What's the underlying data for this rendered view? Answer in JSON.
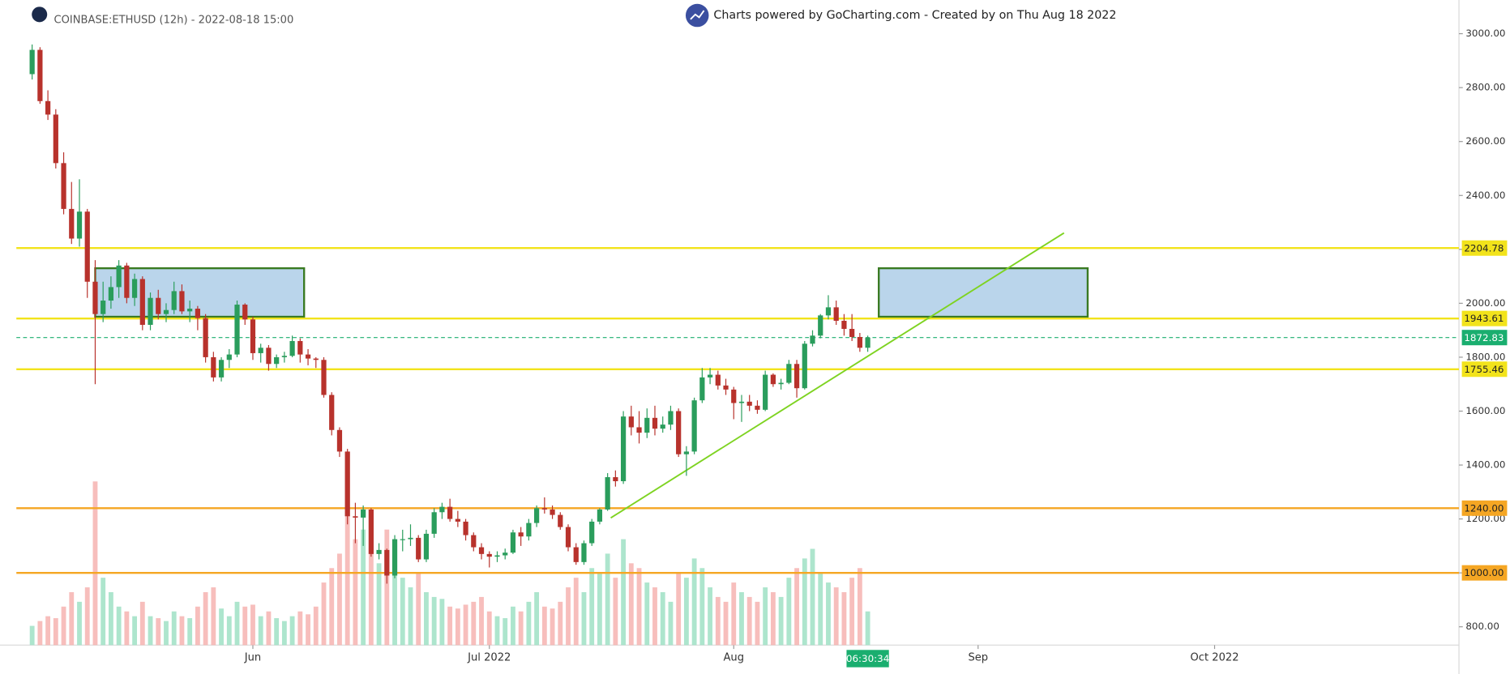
{
  "chart_data": {
    "type": "candlestick",
    "title": "COINBASE:ETHUSD (12h) - 2022-08-18 15:00",
    "subtitle": "Charts powered by GoCharting.com - Created by  on Thu Aug 18 2022",
    "countdown": "06:30:34",
    "up_color": "#2a9d5c",
    "down_color": "#b8322c",
    "volume_up_color": "#9fe0c4",
    "volume_down_color": "#f6b3b0",
    "xlim": [
      -2,
      181
    ],
    "xticks": [
      {
        "value": 28,
        "label": "Jun"
      },
      {
        "value": 58,
        "label": "Jul 2022"
      },
      {
        "value": 89,
        "label": "Aug"
      },
      {
        "value": 120,
        "label": "Sep"
      },
      {
        "value": 150,
        "label": "Oct 2022"
      }
    ],
    "ylim": [
      732,
      3125
    ],
    "yticks": [
      {
        "value": 800,
        "label": "800.00"
      },
      {
        "value": 1000,
        "label": "1000.00"
      },
      {
        "value": 1200,
        "label": "1200.00"
      },
      {
        "value": 1400,
        "label": "1400.00"
      },
      {
        "value": 1600,
        "label": "1600.00"
      },
      {
        "value": 1800,
        "label": "1800.00"
      },
      {
        "value": 2000,
        "label": "2000.00"
      },
      {
        "value": 2200,
        "label": "2200.00"
      },
      {
        "value": 2400,
        "label": "2400.00"
      },
      {
        "value": 2600,
        "label": "2600.00"
      },
      {
        "value": 2800,
        "label": "2800.00"
      },
      {
        "value": 3000,
        "label": "3000.00"
      }
    ],
    "levels": [
      {
        "value": 2204.78,
        "color": "#f2e31b"
      },
      {
        "value": 1943.61,
        "color": "#f2e31b"
      },
      {
        "value": 1755.46,
        "color": "#f2e31b"
      },
      {
        "value": 1240,
        "label": "1240.00",
        "color": "#f5a623"
      },
      {
        "value": 1000,
        "label": "1000.00",
        "color": "#f5a623"
      }
    ],
    "last_price": {
      "value": 1872.83,
      "color": "#1aae6f"
    },
    "zones": [
      {
        "x": [
          8,
          34.5
        ],
        "y": [
          1950,
          2130
        ]
      },
      {
        "x": [
          107.4,
          133.9
        ],
        "y": [
          1950,
          2130
        ]
      }
    ],
    "trendline": {
      "x": [
        73.4,
        130.9
      ],
      "y": [
        1204,
        2261
      ],
      "color": "#7ed321"
    },
    "ohlc": [
      [
        2850,
        2960,
        2830,
        2940
      ],
      [
        2940,
        2950,
        2740,
        2750
      ],
      [
        2750,
        2790,
        2680,
        2700
      ],
      [
        2700,
        2720,
        2500,
        2520
      ],
      [
        2520,
        2560,
        2330,
        2350
      ],
      [
        2350,
        2450,
        2220,
        2240
      ],
      [
        2240,
        2460,
        2210,
        2340
      ],
      [
        2340,
        2350,
        2020,
        2080
      ],
      [
        2080,
        2160,
        1700,
        1960
      ],
      [
        1960,
        2080,
        1930,
        2010
      ],
      [
        2010,
        2100,
        1980,
        2060
      ],
      [
        2060,
        2160,
        2020,
        2140
      ],
      [
        2140,
        2150,
        2000,
        2020
      ],
      [
        2020,
        2110,
        1990,
        2090
      ],
      [
        2090,
        2100,
        1900,
        1920
      ],
      [
        1920,
        2040,
        1900,
        2020
      ],
      [
        2020,
        2050,
        1940,
        1960
      ],
      [
        1960,
        2000,
        1930,
        1975
      ],
      [
        1975,
        2080,
        1960,
        2045
      ],
      [
        2045,
        2070,
        1960,
        1970
      ],
      [
        1970,
        2010,
        1930,
        1980
      ],
      [
        1980,
        1990,
        1900,
        1945
      ],
      [
        1945,
        1960,
        1780,
        1800
      ],
      [
        1800,
        1820,
        1710,
        1725
      ],
      [
        1725,
        1800,
        1710,
        1790
      ],
      [
        1790,
        1830,
        1760,
        1810
      ],
      [
        1810,
        2010,
        1800,
        1995
      ],
      [
        1995,
        2000,
        1920,
        1940
      ],
      [
        1940,
        1950,
        1790,
        1815
      ],
      [
        1815,
        1850,
        1780,
        1835
      ],
      [
        1835,
        1845,
        1750,
        1775
      ],
      [
        1775,
        1810,
        1760,
        1800
      ],
      [
        1800,
        1820,
        1780,
        1805
      ],
      [
        1805,
        1880,
        1800,
        1860
      ],
      [
        1860,
        1870,
        1780,
        1810
      ],
      [
        1810,
        1830,
        1770,
        1795
      ],
      [
        1795,
        1800,
        1760,
        1790
      ],
      [
        1790,
        1800,
        1650,
        1660
      ],
      [
        1660,
        1670,
        1510,
        1530
      ],
      [
        1530,
        1540,
        1430,
        1450
      ],
      [
        1450,
        1460,
        1180,
        1210
      ],
      [
        1210,
        1260,
        1110,
        1205
      ],
      [
        1205,
        1250,
        1100,
        1235
      ],
      [
        1235,
        1240,
        1060,
        1070
      ],
      [
        1070,
        1110,
        1050,
        1085
      ],
      [
        1085,
        1090,
        960,
        990
      ],
      [
        990,
        1140,
        980,
        1125
      ],
      [
        1125,
        1160,
        1080,
        1125
      ],
      [
        1125,
        1180,
        1100,
        1130
      ],
      [
        1130,
        1140,
        1040,
        1050
      ],
      [
        1050,
        1160,
        1040,
        1145
      ],
      [
        1145,
        1240,
        1130,
        1225
      ],
      [
        1225,
        1260,
        1200,
        1245
      ],
      [
        1245,
        1275,
        1190,
        1200
      ],
      [
        1200,
        1230,
        1170,
        1190
      ],
      [
        1190,
        1200,
        1120,
        1140
      ],
      [
        1140,
        1150,
        1080,
        1095
      ],
      [
        1095,
        1110,
        1050,
        1070
      ],
      [
        1070,
        1080,
        1020,
        1060
      ],
      [
        1060,
        1080,
        1040,
        1065
      ],
      [
        1065,
        1090,
        1050,
        1075
      ],
      [
        1075,
        1160,
        1070,
        1150
      ],
      [
        1150,
        1170,
        1100,
        1135
      ],
      [
        1135,
        1200,
        1120,
        1185
      ],
      [
        1185,
        1250,
        1170,
        1240
      ],
      [
        1240,
        1280,
        1220,
        1235
      ],
      [
        1235,
        1250,
        1200,
        1215
      ],
      [
        1215,
        1225,
        1160,
        1170
      ],
      [
        1170,
        1180,
        1080,
        1095
      ],
      [
        1095,
        1110,
        1030,
        1040
      ],
      [
        1040,
        1120,
        1030,
        1110
      ],
      [
        1110,
        1200,
        1100,
        1190
      ],
      [
        1190,
        1240,
        1180,
        1235
      ],
      [
        1235,
        1370,
        1230,
        1355
      ],
      [
        1355,
        1380,
        1320,
        1340
      ],
      [
        1340,
        1600,
        1330,
        1580
      ],
      [
        1580,
        1620,
        1510,
        1540
      ],
      [
        1540,
        1600,
        1480,
        1520
      ],
      [
        1520,
        1610,
        1500,
        1575
      ],
      [
        1575,
        1620,
        1510,
        1535
      ],
      [
        1535,
        1580,
        1520,
        1550
      ],
      [
        1550,
        1620,
        1530,
        1600
      ],
      [
        1600,
        1610,
        1430,
        1440
      ],
      [
        1440,
        1470,
        1360,
        1450
      ],
      [
        1450,
        1650,
        1440,
        1640
      ],
      [
        1640,
        1760,
        1630,
        1725
      ],
      [
        1725,
        1760,
        1700,
        1735
      ],
      [
        1735,
        1750,
        1680,
        1695
      ],
      [
        1695,
        1720,
        1660,
        1680
      ],
      [
        1680,
        1690,
        1570,
        1630
      ],
      [
        1630,
        1660,
        1560,
        1635
      ],
      [
        1635,
        1660,
        1600,
        1620
      ],
      [
        1620,
        1640,
        1590,
        1605
      ],
      [
        1605,
        1750,
        1600,
        1735
      ],
      [
        1735,
        1740,
        1690,
        1700
      ],
      [
        1700,
        1720,
        1680,
        1705
      ],
      [
        1705,
        1790,
        1700,
        1775
      ],
      [
        1775,
        1790,
        1650,
        1685
      ],
      [
        1685,
        1860,
        1680,
        1850
      ],
      [
        1850,
        1900,
        1840,
        1880
      ],
      [
        1880,
        1960,
        1870,
        1955
      ],
      [
        1955,
        2030,
        1940,
        1985
      ],
      [
        1985,
        2010,
        1920,
        1935
      ],
      [
        1935,
        1960,
        1880,
        1905
      ],
      [
        1905,
        1960,
        1860,
        1875
      ],
      [
        1875,
        1890,
        1820,
        1835
      ],
      [
        1835,
        1880,
        1820,
        1872.83
      ]
    ],
    "volume": [
      20,
      25,
      30,
      28,
      40,
      55,
      45,
      60,
      170,
      70,
      55,
      40,
      35,
      30,
      45,
      30,
      28,
      25,
      35,
      30,
      28,
      40,
      55,
      60,
      38,
      30,
      45,
      40,
      42,
      30,
      35,
      28,
      25,
      30,
      35,
      32,
      40,
      65,
      80,
      95,
      180,
      110,
      120,
      100,
      85,
      120,
      90,
      70,
      60,
      75,
      55,
      50,
      48,
      40,
      38,
      42,
      45,
      50,
      35,
      30,
      28,
      40,
      35,
      45,
      55,
      40,
      38,
      45,
      60,
      70,
      55,
      80,
      75,
      95,
      70,
      110,
      85,
      80,
      65,
      60,
      55,
      45,
      75,
      70,
      90,
      80,
      60,
      50,
      45,
      65,
      55,
      50,
      45,
      60,
      55,
      50,
      70,
      80,
      90,
      100,
      75,
      65,
      60,
      55,
      70,
      80,
      35
    ]
  }
}
